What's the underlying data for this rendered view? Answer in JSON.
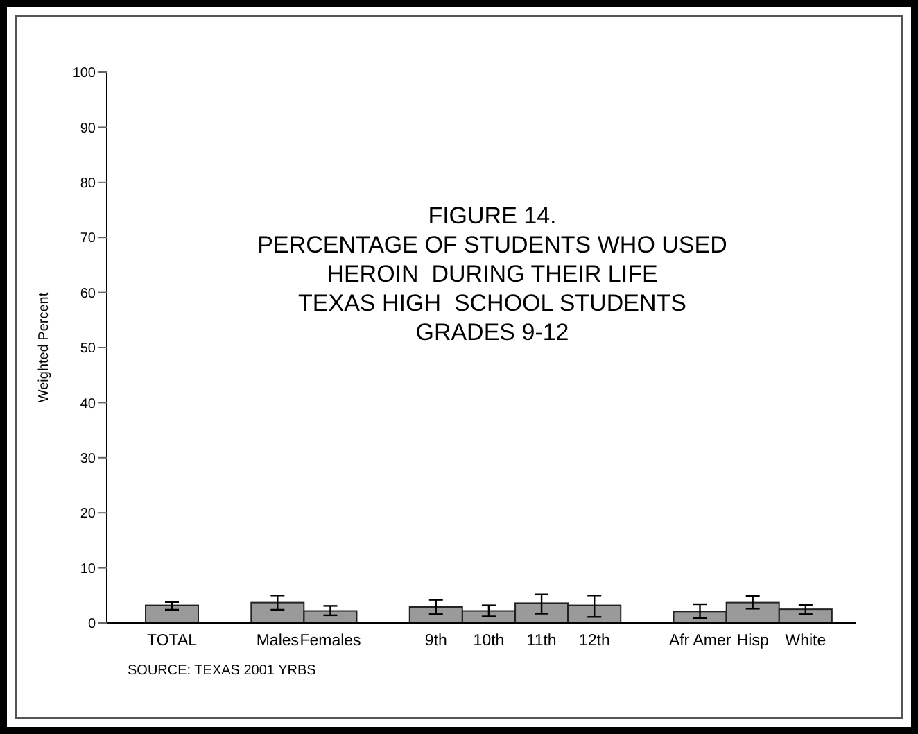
{
  "chart_data": {
    "type": "bar",
    "title": "FIGURE 14.\nPERCENTAGE OF STUDENTS WHO USED\nHEROIN  DURING THEIR LIFE\nTEXAS HIGH  SCHOOL STUDENTS\nGRADES 9-12",
    "ylabel": "Weighted Percent",
    "annotations": [
      "SOURCE: TEXAS 2001 YRBS"
    ],
    "categories": [
      "TOTAL",
      null,
      "Males",
      "Females",
      null,
      "9th",
      "10th",
      "11th",
      "12th",
      null,
      "Afr Amer",
      "Hisp",
      "White"
    ],
    "values": [
      3.2,
      null,
      3.7,
      2.2,
      null,
      2.9,
      2.2,
      3.6,
      3.2,
      null,
      2.1,
      3.7,
      2.5
    ],
    "errors": [
      [
        2.4,
        3.8
      ],
      null,
      [
        2.4,
        5.0
      ],
      [
        1.4,
        3.1
      ],
      null,
      [
        1.6,
        4.2
      ],
      [
        1.2,
        3.2
      ],
      [
        1.7,
        5.2
      ],
      [
        1.1,
        5.0
      ],
      null,
      [
        0.9,
        3.4
      ],
      [
        2.6,
        4.9
      ],
      [
        1.6,
        3.3
      ]
    ],
    "color": "#9a9a9a",
    "ylim": [
      0,
      100
    ],
    "yticks": [
      0,
      10,
      20,
      30,
      40,
      50,
      60,
      70,
      80,
      90,
      100
    ],
    "grid": false,
    "legend": false
  }
}
